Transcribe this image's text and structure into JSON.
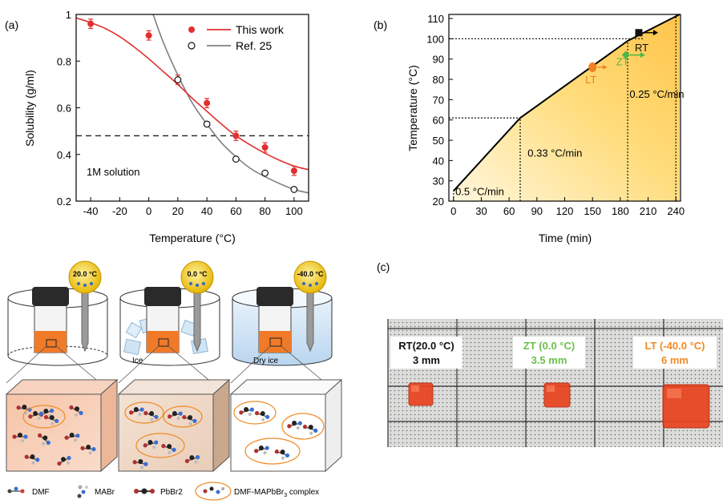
{
  "panel_labels": {
    "a": "(a)",
    "b": "(b)",
    "c": "(c)"
  },
  "chart_data": [
    {
      "type": "scatter",
      "panel": "(a)",
      "xlabel": "Temperature (°C)",
      "ylabel": "Solubility (g/ml)",
      "xlim": [
        -50,
        110
      ],
      "ylim": [
        0.2,
        1.0
      ],
      "xticks": [
        -40,
        -20,
        0,
        20,
        40,
        60,
        80,
        100
      ],
      "yticks": [
        0.2,
        0.4,
        0.6,
        0.8,
        1.0
      ],
      "ytick_labels": [
        "0.2",
        "0.4",
        "0.6",
        "0.8",
        "1"
      ],
      "legend_placement": "top-right",
      "series": [
        {
          "name": "This work",
          "color": "#e03030",
          "marker": "filled-circle",
          "x": [
            -40,
            0,
            20,
            40,
            60,
            80,
            100
          ],
          "y": [
            0.96,
            0.91,
            0.72,
            0.62,
            0.48,
            0.43,
            0.33
          ],
          "err": [
            0.02,
            0.02,
            0.02,
            0.02,
            0.02,
            0.02,
            0.02
          ],
          "fit_x": [
            -50,
            -40,
            -30,
            -20,
            -10,
            0,
            10,
            20,
            30,
            40,
            50,
            60,
            70,
            80,
            90,
            100,
            110
          ],
          "fit_y": [
            0.985,
            0.965,
            0.94,
            0.905,
            0.86,
            0.81,
            0.755,
            0.7,
            0.64,
            0.585,
            0.53,
            0.48,
            0.44,
            0.405,
            0.375,
            0.35,
            0.335
          ]
        },
        {
          "name": "Ref. 25",
          "color": "#808080",
          "marker": "open-circle",
          "x": [
            20,
            40,
            60,
            80,
            100
          ],
          "y": [
            0.72,
            0.53,
            0.38,
            0.32,
            0.25
          ],
          "fit_x": [
            3,
            10,
            20,
            30,
            40,
            50,
            60,
            70,
            80,
            90,
            100,
            110
          ],
          "fit_y": [
            1.0,
            0.88,
            0.74,
            0.62,
            0.53,
            0.45,
            0.39,
            0.34,
            0.305,
            0.275,
            0.25,
            0.235
          ]
        }
      ],
      "reference_line": {
        "y": 0.48,
        "label": "1M solution"
      }
    },
    {
      "type": "line",
      "panel": "(b)",
      "xlabel": "Time (min)",
      "ylabel": "Temperature (°C)",
      "xlim": [
        -5,
        245
      ],
      "ylim": [
        20,
        112
      ],
      "xticks": [
        0,
        30,
        60,
        90,
        120,
        150,
        180,
        210,
        240
      ],
      "yticks": [
        20,
        30,
        40,
        50,
        60,
        70,
        80,
        90,
        100,
        110
      ],
      "profile": {
        "x": [
          0,
          72,
          188,
          244
        ],
        "y": [
          25,
          61,
          99,
          113
        ]
      },
      "region_labels": [
        {
          "text": "0.5 °C/min",
          "x": 2,
          "y": 23
        },
        {
          "text": "0.33 °C/min",
          "x": 80,
          "y": 42
        },
        {
          "text": "0.25 °C/min",
          "x": 190,
          "y": 71
        }
      ],
      "dotted_lines": {
        "h": [
          61,
          100
        ],
        "v": [
          72,
          188,
          240
        ],
        "v_initial": {
          "x": 0,
          "y_max": 25
        }
      },
      "markers": [
        {
          "label": "LT",
          "x": 150,
          "y": 86,
          "color": "#f08020",
          "shape": "circle"
        },
        {
          "label": "ZT",
          "x": 186,
          "y": 92,
          "color": "#48b848",
          "shape": "diamond"
        },
        {
          "label": "RT",
          "x": 200,
          "y": 103,
          "color": "#111111",
          "shape": "square"
        }
      ]
    }
  ],
  "schematic": {
    "beakers": [
      {
        "thermometer": "20.0 °C",
        "medium": ""
      },
      {
        "thermometer": "0.0 °C",
        "medium": "Ice"
      },
      {
        "thermometer": "-40.0 °C",
        "medium": "Dry ice"
      }
    ],
    "legend": [
      "DMF",
      "MABr",
      "PbBr2",
      "DMF-MAPbBr",
      "3",
      " complex"
    ]
  },
  "photo": {
    "labels": [
      {
        "line1": "RT(20.0 °C)",
        "line2": "3 mm",
        "color": "#111111"
      },
      {
        "line1": "ZT (0.0 °C)",
        "line2": "3.5 mm",
        "color": "#6cc04a"
      },
      {
        "line1": "LT (-40.0 °C)",
        "line2": "6 mm",
        "color": "#f08a24"
      }
    ]
  }
}
